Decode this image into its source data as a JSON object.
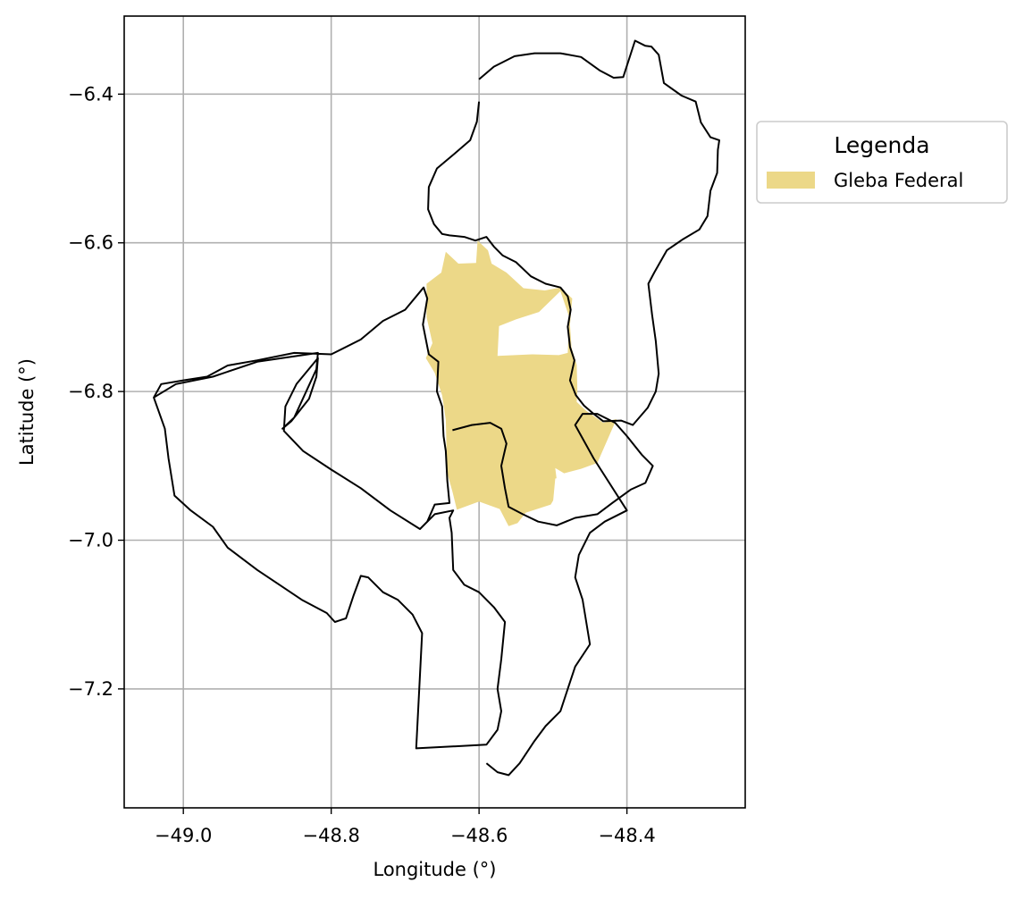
{
  "chart_data": {
    "type": "map",
    "xlabel": "Longitude (°)",
    "ylabel": "Latitude (°)",
    "xlim": [
      -49.08,
      -48.24
    ],
    "ylim": [
      -7.36,
      -6.295
    ],
    "x_ticks": [
      "−49.0",
      "−48.8",
      "−48.6",
      "−48.4"
    ],
    "y_ticks": [
      "−6.4",
      "−6.6",
      "−6.8",
      "−7.0",
      "−7.2"
    ],
    "grid": true,
    "legend": {
      "title": "Legenda",
      "placement": "outside upper right",
      "entries": [
        {
          "label": "Gleba Federal",
          "color": "#ecd888"
        }
      ]
    },
    "boundary_color": "#000000",
    "layers": [
      {
        "name": "Gleba Federal",
        "kind": "fill",
        "color": "#ecd888",
        "coordinates": [
          [
            -48.671,
            -6.655
          ],
          [
            -48.651,
            -6.64
          ],
          [
            -48.645,
            -6.612
          ],
          [
            -48.628,
            -6.628
          ],
          [
            -48.604,
            -6.627
          ],
          [
            -48.602,
            -6.597
          ],
          [
            -48.588,
            -6.61
          ],
          [
            -48.583,
            -6.628
          ],
          [
            -48.563,
            -6.64
          ],
          [
            -48.54,
            -6.661
          ],
          [
            -48.511,
            -6.664
          ],
          [
            -48.49,
            -6.66
          ],
          [
            -48.474,
            -6.675
          ],
          [
            -48.477,
            -6.71
          ],
          [
            -48.475,
            -6.741
          ],
          [
            -48.468,
            -6.764
          ],
          [
            -48.467,
            -6.799
          ],
          [
            -48.468,
            -6.814
          ],
          [
            -48.455,
            -6.826
          ],
          [
            -48.432,
            -6.842
          ],
          [
            -48.414,
            -6.837
          ],
          [
            -48.44,
            -6.896
          ],
          [
            -48.462,
            -6.904
          ],
          [
            -48.485,
            -6.91
          ],
          [
            -48.497,
            -6.903
          ],
          [
            -48.493,
            -6.935
          ],
          [
            -48.503,
            -6.952
          ],
          [
            -48.537,
            -6.963
          ],
          [
            -48.548,
            -6.977
          ],
          [
            -48.56,
            -6.981
          ],
          [
            -48.572,
            -6.958
          ],
          [
            -48.6,
            -6.948
          ],
          [
            -48.63,
            -6.959
          ],
          [
            -48.636,
            -6.935
          ],
          [
            -48.643,
            -6.91
          ],
          [
            -48.644,
            -6.875
          ],
          [
            -48.645,
            -6.838
          ],
          [
            -48.65,
            -6.805
          ],
          [
            -48.66,
            -6.775
          ],
          [
            -48.672,
            -6.755
          ],
          [
            -48.663,
            -6.735
          ],
          [
            -48.671,
            -6.7
          ]
        ],
        "holes": [
          [
            [
              -48.519,
              -6.693
            ],
            [
              -48.49,
              -6.665
            ],
            [
              -48.478,
              -6.7
            ],
            [
              -48.48,
              -6.748
            ],
            [
              -48.492,
              -6.751
            ],
            [
              -48.528,
              -6.75
            ],
            [
              -48.575,
              -6.752
            ],
            [
              -48.573,
              -6.712
            ],
            [
              -48.55,
              -6.703
            ]
          ],
          [
            [
              -48.487,
              -6.915
            ],
            [
              -48.477,
              -6.958
            ],
            [
              -48.5,
              -6.949
            ],
            [
              -48.497,
              -6.917
            ]
          ]
        ]
      },
      {
        "name": "municipality-north",
        "kind": "boundary",
        "coordinates": [
          [
            -48.6,
            -6.38
          ],
          [
            -48.58,
            -6.363
          ],
          [
            -48.552,
            -6.349
          ],
          [
            -48.525,
            -6.345
          ],
          [
            -48.49,
            -6.345
          ],
          [
            -48.462,
            -6.35
          ],
          [
            -48.437,
            -6.368
          ],
          [
            -48.418,
            -6.378
          ],
          [
            -48.405,
            -6.377
          ],
          [
            -48.389,
            -6.328
          ],
          [
            -48.375,
            -6.335
          ],
          [
            -48.367,
            -6.336
          ],
          [
            -48.357,
            -6.347
          ],
          [
            -48.35,
            -6.385
          ],
          [
            -48.326,
            -6.402
          ],
          [
            -48.307,
            -6.41
          ],
          [
            -48.3,
            -6.438
          ],
          [
            -48.287,
            -6.458
          ],
          [
            -48.275,
            -6.462
          ],
          [
            -48.277,
            -6.475
          ],
          [
            -48.278,
            -6.506
          ],
          [
            -48.287,
            -6.53
          ],
          [
            -48.291,
            -6.564
          ],
          [
            -48.302,
            -6.582
          ],
          [
            -48.324,
            -6.595
          ],
          [
            -48.346,
            -6.61
          ],
          [
            -48.363,
            -6.64
          ],
          [
            -48.371,
            -6.655
          ],
          [
            -48.366,
            -6.697
          ],
          [
            -48.361,
            -6.732
          ],
          [
            -48.357,
            -6.776
          ],
          [
            -48.361,
            -6.8
          ],
          [
            -48.372,
            -6.822
          ],
          [
            -48.392,
            -6.845
          ],
          [
            -48.408,
            -6.839
          ],
          [
            -48.432,
            -6.84
          ],
          [
            -48.445,
            -6.83
          ],
          [
            -48.458,
            -6.819
          ],
          [
            -48.469,
            -6.805
          ],
          [
            -48.477,
            -6.785
          ],
          [
            -48.471,
            -6.758
          ],
          [
            -48.477,
            -6.74
          ],
          [
            -48.48,
            -6.713
          ],
          [
            -48.476,
            -6.69
          ],
          [
            -48.48,
            -6.672
          ],
          [
            -48.49,
            -6.66
          ],
          [
            -48.51,
            -6.655
          ],
          [
            -48.53,
            -6.645
          ],
          [
            -48.55,
            -6.626
          ],
          [
            -48.568,
            -6.617
          ],
          [
            -48.58,
            -6.605
          ],
          [
            -48.59,
            -6.592
          ],
          [
            -48.605,
            -6.597
          ],
          [
            -48.62,
            -6.592
          ],
          [
            -48.64,
            -6.59
          ],
          [
            -48.65,
            -6.588
          ],
          [
            -48.661,
            -6.575
          ],
          [
            -48.669,
            -6.555
          ],
          [
            -48.668,
            -6.525
          ],
          [
            -48.657,
            -6.5
          ],
          [
            -48.633,
            -6.48
          ],
          [
            -48.612,
            -6.462
          ],
          [
            -48.603,
            -6.437
          ],
          [
            -48.6,
            -6.41
          ]
        ]
      },
      {
        "name": "municipality-west",
        "kind": "boundary",
        "coordinates": [
          [
            -49.04,
            -6.808
          ],
          [
            -49.03,
            -6.79
          ],
          [
            -49.0,
            -6.785
          ],
          [
            -48.968,
            -6.78
          ],
          [
            -48.94,
            -6.765
          ],
          [
            -48.9,
            -6.758
          ],
          [
            -48.85,
            -6.748
          ],
          [
            -48.8,
            -6.75
          ],
          [
            -48.76,
            -6.73
          ],
          [
            -48.73,
            -6.705
          ],
          [
            -48.7,
            -6.69
          ],
          [
            -48.675,
            -6.66
          ],
          [
            -48.67,
            -6.675
          ],
          [
            -48.676,
            -6.71
          ],
          [
            -48.668,
            -6.75
          ],
          [
            -48.655,
            -6.76
          ],
          [
            -48.657,
            -6.8
          ],
          [
            -48.65,
            -6.82
          ],
          [
            -48.648,
            -6.86
          ],
          [
            -48.645,
            -6.88
          ],
          [
            -48.643,
            -6.92
          ],
          [
            -48.64,
            -6.95
          ],
          [
            -48.66,
            -6.952
          ],
          [
            -48.67,
            -6.975
          ],
          [
            -48.68,
            -6.985
          ],
          [
            -48.72,
            -6.96
          ],
          [
            -48.76,
            -6.93
          ],
          [
            -48.8,
            -6.905
          ],
          [
            -48.838,
            -6.88
          ],
          [
            -48.864,
            -6.853
          ],
          [
            -48.862,
            -6.82
          ],
          [
            -48.847,
            -6.79
          ],
          [
            -48.818,
            -6.755
          ],
          [
            -48.82,
            -6.78
          ],
          [
            -48.83,
            -6.81
          ],
          [
            -48.854,
            -6.84
          ],
          [
            -48.866,
            -6.85
          ],
          [
            -48.85,
            -6.835
          ],
          [
            -48.82,
            -6.77
          ],
          [
            -48.818,
            -6.748
          ],
          [
            -48.9,
            -6.76
          ],
          [
            -48.96,
            -6.78
          ],
          [
            -49.01,
            -6.79
          ],
          [
            -49.04,
            -6.808
          ],
          [
            -49.025,
            -6.85
          ],
          [
            -49.02,
            -6.89
          ],
          [
            -49.012,
            -6.94
          ],
          [
            -48.99,
            -6.96
          ],
          [
            -48.96,
            -6.982
          ],
          [
            -48.94,
            -7.01
          ],
          [
            -48.9,
            -7.04
          ],
          [
            -48.87,
            -7.06
          ],
          [
            -48.84,
            -7.08
          ],
          [
            -48.806,
            -7.098
          ],
          [
            -48.795,
            -7.11
          ],
          [
            -48.78,
            -7.105
          ],
          [
            -48.77,
            -7.075
          ],
          [
            -48.76,
            -7.048
          ],
          [
            -48.75,
            -7.05
          ],
          [
            -48.73,
            -7.07
          ],
          [
            -48.71,
            -7.08
          ],
          [
            -48.69,
            -7.1
          ],
          [
            -48.677,
            -7.125
          ],
          [
            -48.685,
            -7.28
          ],
          [
            -48.59,
            -7.275
          ],
          [
            -48.575,
            -7.255
          ],
          [
            -48.57,
            -7.23
          ],
          [
            -48.575,
            -7.2
          ],
          [
            -48.57,
            -7.16
          ],
          [
            -48.565,
            -7.11
          ],
          [
            -48.58,
            -7.09
          ],
          [
            -48.6,
            -7.07
          ],
          [
            -48.62,
            -7.06
          ],
          [
            -48.635,
            -7.04
          ],
          [
            -48.637,
            -6.99
          ],
          [
            -48.64,
            -6.97
          ],
          [
            -48.635,
            -6.96
          ],
          [
            -48.66,
            -6.965
          ],
          [
            -48.68,
            -6.985
          ]
        ]
      },
      {
        "name": "municipality-south",
        "kind": "boundary",
        "coordinates": [
          [
            -48.636,
            -6.852
          ],
          [
            -48.61,
            -6.845
          ],
          [
            -48.585,
            -6.842
          ],
          [
            -48.57,
            -6.85
          ],
          [
            -48.563,
            -6.87
          ],
          [
            -48.57,
            -6.9
          ],
          [
            -48.565,
            -6.93
          ],
          [
            -48.56,
            -6.955
          ],
          [
            -48.541,
            -6.965
          ],
          [
            -48.52,
            -6.975
          ],
          [
            -48.495,
            -6.98
          ],
          [
            -48.47,
            -6.97
          ],
          [
            -48.44,
            -6.965
          ],
          [
            -48.42,
            -6.95
          ],
          [
            -48.395,
            -6.932
          ],
          [
            -48.375,
            -6.923
          ],
          [
            -48.365,
            -6.9
          ],
          [
            -48.38,
            -6.885
          ],
          [
            -48.4,
            -6.86
          ],
          [
            -48.416,
            -6.842
          ],
          [
            -48.44,
            -6.83
          ],
          [
            -48.46,
            -6.83
          ],
          [
            -48.47,
            -6.845
          ],
          [
            -48.445,
            -6.89
          ],
          [
            -48.4,
            -6.96
          ],
          [
            -48.43,
            -6.975
          ],
          [
            -48.45,
            -6.99
          ],
          [
            -48.465,
            -7.02
          ],
          [
            -48.47,
            -7.05
          ],
          [
            -48.46,
            -7.08
          ],
          [
            -48.455,
            -7.11
          ],
          [
            -48.45,
            -7.14
          ],
          [
            -48.47,
            -7.17
          ],
          [
            -48.48,
            -7.2
          ],
          [
            -48.49,
            -7.23
          ],
          [
            -48.51,
            -7.25
          ],
          [
            -48.525,
            -7.27
          ],
          [
            -48.545,
            -7.3
          ],
          [
            -48.56,
            -7.316
          ],
          [
            -48.575,
            -7.312
          ],
          [
            -48.59,
            -7.3
          ]
        ]
      }
    ]
  }
}
